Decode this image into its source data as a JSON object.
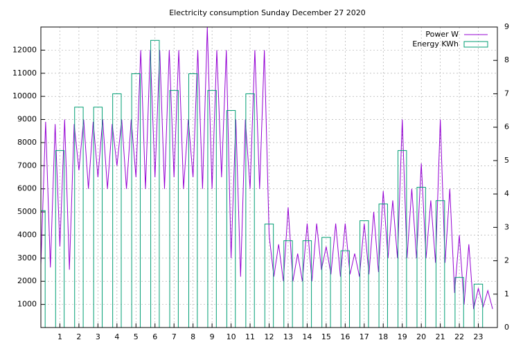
{
  "chart_data": {
    "type": "line",
    "title": "Electricity consumption Sunday December 27 2020",
    "xlim": [
      0,
      24
    ],
    "xticks": [
      1,
      2,
      3,
      4,
      5,
      6,
      7,
      8,
      9,
      10,
      11,
      12,
      13,
      14,
      15,
      16,
      17,
      18,
      19,
      20,
      21,
      22,
      23
    ],
    "ylim": [
      0,
      13000
    ],
    "yticks": [
      1000,
      2000,
      3000,
      4000,
      5000,
      6000,
      7000,
      8000,
      9000,
      10000,
      11000,
      12000
    ],
    "y2lim": [
      0,
      9
    ],
    "y2ticks": [
      0,
      1,
      2,
      3,
      4,
      5,
      6,
      7,
      8,
      9
    ],
    "grid": true,
    "legend": "top-right",
    "series": [
      {
        "name": "Power W",
        "color": "#9400d3",
        "type": "line",
        "x": [
          0,
          0.25,
          0.5,
          0.75,
          1,
          1.25,
          1.5,
          1.75,
          2,
          2.25,
          2.5,
          2.75,
          3,
          3.25,
          3.5,
          3.75,
          4,
          4.25,
          4.5,
          4.75,
          5,
          5.25,
          5.5,
          5.75,
          6,
          6.25,
          6.5,
          6.75,
          7,
          7.25,
          7.5,
          7.75,
          8,
          8.25,
          8.5,
          8.75,
          9,
          9.25,
          9.5,
          9.75,
          10,
          10.25,
          10.5,
          10.75,
          11,
          11.25,
          11.5,
          11.75,
          12,
          12.25,
          12.5,
          12.75,
          13,
          13.25,
          13.5,
          13.75,
          14,
          14.25,
          14.5,
          14.75,
          15,
          15.25,
          15.5,
          15.75,
          16,
          16.25,
          16.5,
          16.75,
          17,
          17.25,
          17.5,
          17.75,
          18,
          18.25,
          18.5,
          18.75,
          19,
          19.25,
          19.5,
          19.75,
          20,
          20.25,
          20.5,
          20.75,
          21,
          21.25,
          21.5,
          21.75,
          22,
          22.25,
          22.5,
          22.75,
          23,
          23.25,
          23.5,
          23.75
        ],
        "values": [
          2700,
          8900,
          2600,
          8800,
          3500,
          9000,
          2500,
          8800,
          6800,
          9000,
          6000,
          8900,
          6500,
          9000,
          6000,
          8800,
          7000,
          9000,
          6000,
          9000,
          6500,
          12000,
          6000,
          12000,
          6500,
          12000,
          6000,
          12000,
          6500,
          12000,
          6000,
          9000,
          6500,
          12000,
          6000,
          13000,
          6000,
          12000,
          6500,
          12000,
          3000,
          9000,
          2200,
          9000,
          6000,
          12000,
          6000,
          12000,
          4000,
          2200,
          3600,
          2000,
          5200,
          2000,
          3200,
          2000,
          4500,
          2000,
          4500,
          2500,
          3500,
          2300,
          4500,
          2200,
          4500,
          2300,
          3200,
          2200,
          4500,
          2300,
          5000,
          2400,
          5900,
          3000,
          5500,
          3000,
          9000,
          3000,
          6000,
          3000,
          7100,
          3000,
          5500,
          2800,
          9000,
          2800,
          6000,
          1500,
          4000,
          1000,
          3600,
          800,
          1700,
          900,
          1600,
          800
        ]
      },
      {
        "name": "Energy KWh",
        "color": "#009e73",
        "type": "boxes",
        "axis": "y2",
        "x": [
          0,
          1,
          2,
          3,
          4,
          5,
          6,
          7,
          8,
          9,
          10,
          11,
          12,
          13,
          14,
          15,
          16,
          17,
          18,
          19,
          20,
          21,
          22,
          23
        ],
        "values": [
          3.5,
          5.3,
          6.6,
          6.6,
          7.0,
          7.6,
          8.6,
          7.1,
          7.6,
          7.1,
          6.5,
          7.0,
          3.1,
          2.6,
          2.6,
          2.7,
          2.3,
          3.2,
          3.7,
          5.3,
          4.2,
          3.8,
          1.5,
          1.3
        ]
      }
    ]
  }
}
